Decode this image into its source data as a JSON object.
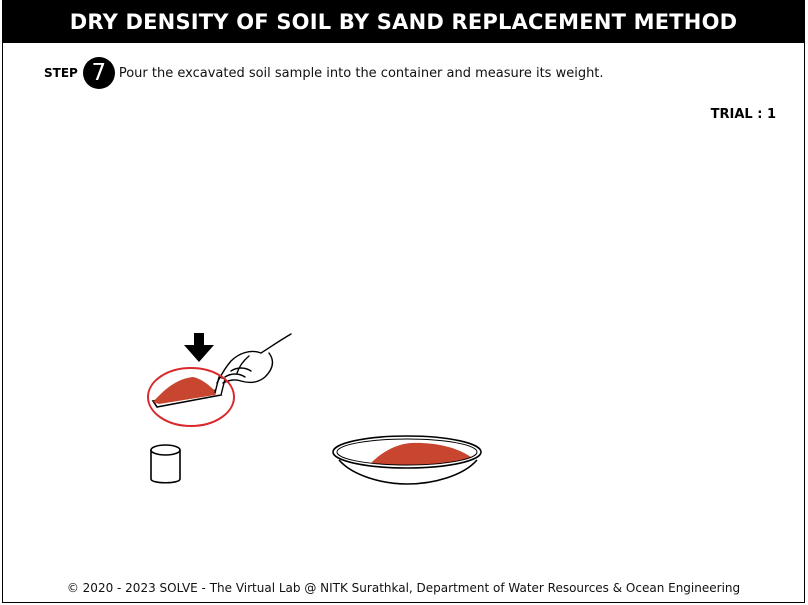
{
  "header": {
    "title": "DRY DENSITY OF SOIL BY SAND REPLACEMENT METHOD"
  },
  "step": {
    "label": "STEP",
    "number": "7",
    "instruction": "Pour the excavated soil sample into the container and measure its weight."
  },
  "trial": {
    "label": "TRIAL : 1"
  },
  "footer": {
    "text": "© 2020 - 2023 SOLVE - The Virtual Lab @ NITK Surathkal, Department of Water Resources & Ocean Engineering"
  },
  "colors": {
    "soil": "#c8452f",
    "highlight_ring": "#d9292c",
    "title_bg": "#000000"
  }
}
